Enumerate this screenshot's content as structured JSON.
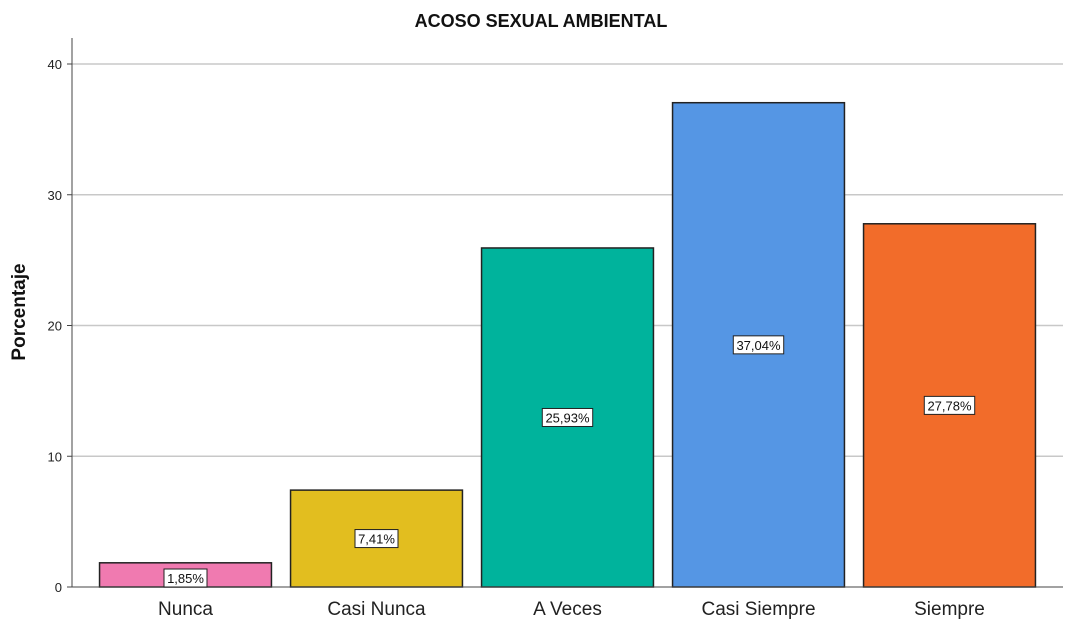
{
  "chart_data": {
    "type": "bar",
    "title": "ACOSO SEXUAL AMBIENTAL",
    "ylabel": "Porcentaje",
    "xlabel": "",
    "categories": [
      "Nunca",
      "Casi Nunca",
      "A Veces",
      "Casi Siempre",
      "Siempre"
    ],
    "values": [
      1.85,
      7.41,
      25.93,
      37.04,
      27.78
    ],
    "data_labels": [
      "1,85%",
      "7,41%",
      "25,93%",
      "37,04%",
      "27,78%"
    ],
    "colors": [
      "#f07ab0",
      "#e2be1f",
      "#00b39c",
      "#5596e4",
      "#f26c2a"
    ],
    "ylim": [
      0,
      40
    ],
    "yticks": [
      0,
      10,
      20,
      30,
      40
    ],
    "grid": true,
    "gridline_color": "#c8c8c8"
  }
}
